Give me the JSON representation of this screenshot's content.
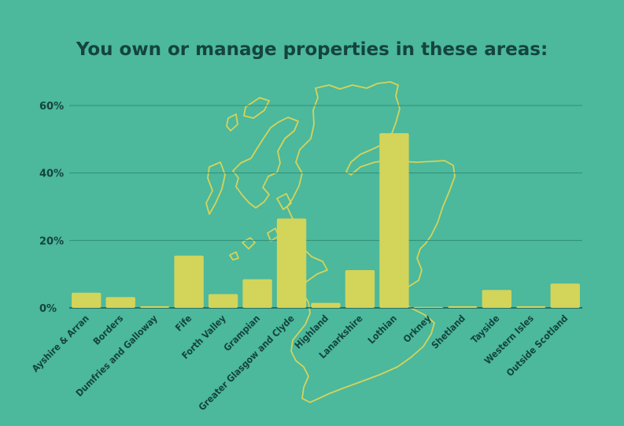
{
  "colors": {
    "background": "#4cb89c",
    "bar": "#d3d45a",
    "map_outline": "#d3d45a",
    "text": "#14443f",
    "grid": "#2e8f77"
  },
  "chart_data": {
    "type": "bar",
    "title": "You own or manage properties in these areas:",
    "xlabel": "",
    "ylabel": "",
    "ylim": [
      0,
      60
    ],
    "yticks": [
      {
        "value": 0,
        "label": "0%"
      },
      {
        "value": 20,
        "label": "20%"
      },
      {
        "value": 40,
        "label": "40%"
      },
      {
        "value": 60,
        "label": "60%"
      }
    ],
    "grid": true,
    "categories": [
      "Ayshire & Arran",
      "Borders",
      "Dumfries and Galloway",
      "Fife",
      "Forth Valley",
      "Grampian",
      "Greater Glasgow and Clyde",
      "Highland",
      "Lanarkshire",
      "Lothian",
      "Orkney",
      "Shetland",
      "Tayside",
      "Western Isles",
      "Outside Scotland"
    ],
    "values": [
      4.5,
      3.2,
      0.5,
      15.5,
      4.1,
      8.5,
      26.5,
      1.5,
      11.2,
      51.8,
      0.3,
      0.5,
      5.3,
      0.5,
      7.2
    ]
  }
}
